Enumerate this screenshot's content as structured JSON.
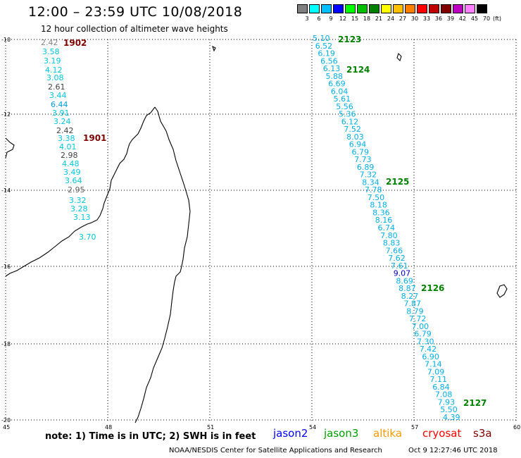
{
  "header": {
    "title": "12:00 – 23:59 UTC 10/08/2018",
    "subtitle": "12 hour collection of altimeter wave heights"
  },
  "color_scale": {
    "labels": [
      "3",
      "6",
      "9",
      "12",
      "15",
      "18",
      "21",
      "24",
      "27",
      "30",
      "33",
      "36",
      "39",
      "42",
      "45",
      "70"
    ],
    "unit": "(ft)",
    "colors": [
      "#7f7f7f",
      "#00ffff",
      "#00bfff",
      "#0000ff",
      "#00ff00",
      "#00c000",
      "#008000",
      "#ffff00",
      "#ffc000",
      "#ff8000",
      "#ff0000",
      "#c00000",
      "#800000",
      "#c000c0",
      "#ff80ff",
      "#000000"
    ]
  },
  "axes": {
    "lat_labels": [
      "-10",
      "-12",
      "-14",
      "-16",
      "-18",
      "-20"
    ],
    "lon_labels": [
      "45",
      "48",
      "51",
      "54",
      "57",
      "60"
    ]
  },
  "tracks": {
    "west": {
      "values": [
        "2.42",
        "3.58",
        "3.19",
        "4.12",
        "3.08",
        "2.61",
        "3.44",
        "6.44",
        "3.91",
        "3.24",
        "2.42",
        "3.38",
        "4.01",
        "2.98",
        "4.48",
        "3.49",
        "3.64",
        "2.95",
        "3.32",
        "3.28",
        "3.13",
        "3.70"
      ],
      "colors": [
        "#808080",
        "#00c8e0",
        "#00c8e0",
        "#00c8e0",
        "#00c8e0",
        "#404040",
        "#00c8e0",
        "#00a0e0",
        "#00c8e0",
        "#00c8e0",
        "#404040",
        "#00c8e0",
        "#00c8e0",
        "#404040",
        "#00c8e0",
        "#00c8e0",
        "#00c8e0",
        "#606060",
        "#00c8e0",
        "#00c8e0",
        "#00c8e0",
        "#00c8e0"
      ],
      "time_labels": [
        "1902",
        "1901"
      ]
    },
    "east": {
      "values": [
        "5.10",
        "6.52",
        "6.19",
        "6.56",
        "6.13",
        "5.88",
        "6.69",
        "6.04",
        "5.61",
        "5.56",
        "5.36",
        "6.12",
        "7.52",
        "8.03",
        "6.94",
        "6.79",
        "7.73",
        "6.89",
        "7.32",
        "8.34",
        "7.78",
        "7.50",
        "8.18",
        "8.36",
        "8.16",
        "6.74",
        "7.80",
        "8.83",
        "7.66",
        "7.62",
        "7.61",
        "9.07",
        "8.69",
        "8.87",
        "8.27",
        "7.87",
        "8.79",
        "7.72",
        "7.00",
        "6.79",
        "7.30",
        "7.42",
        "6.90",
        "7.14",
        "7.09",
        "7.11",
        "6.84",
        "7.08",
        "7.93",
        "5.50",
        "4.39"
      ],
      "colors": [
        "#00b0e8",
        "#00b0e8",
        "#00b0e8",
        "#00b0e8",
        "#00b0e8",
        "#00b0e8",
        "#00b0e8",
        "#00b0e8",
        "#00b0e8",
        "#00b0e8",
        "#00b0e8",
        "#00b0e8",
        "#00b0e8",
        "#00b0e8",
        "#00b0e8",
        "#00b0e8",
        "#00b0e8",
        "#00b0e8",
        "#00b0e8",
        "#00b0e8",
        "#00b0e8",
        "#00b0e8",
        "#00b0e8",
        "#00b0e8",
        "#00b0e8",
        "#00b0e8",
        "#00b0e8",
        "#00b0e8",
        "#00b0e8",
        "#00b0e8",
        "#00b0e8",
        "#0000cc",
        "#00b0e8",
        "#00b0e8",
        "#00b0e8",
        "#00b0e8",
        "#00b0e8",
        "#00b0e8",
        "#00b0e8",
        "#00b0e8",
        "#00b0e8",
        "#00b0e8",
        "#00b0e8",
        "#00b0e8",
        "#00b0e8",
        "#00b0e8",
        "#00b0e8",
        "#00b0e8",
        "#00b0e8",
        "#00b0e8",
        "#00b0e8"
      ],
      "time_labels": [
        "2123",
        "2124",
        "2125",
        "2126",
        "2127"
      ]
    }
  },
  "colors": {
    "west_time": "#800000",
    "east_time": "#008000",
    "grid": "#000000"
  },
  "footer": {
    "note": "note: 1) Time is in UTC; 2) SWH is in feet",
    "satellites": [
      {
        "name": "jason2",
        "color": "#0000ff"
      },
      {
        "name": "jason3",
        "color": "#00a000"
      },
      {
        "name": "altika",
        "color": "#ff9900"
      },
      {
        "name": "cryosat",
        "color": "#ff0000"
      },
      {
        "name": "s3a",
        "color": "#800000"
      }
    ],
    "credit": "NOAA/NESDIS Center for Satellite Applications and Research",
    "generated": "Oct  9 12:27:46 UTC 2018"
  }
}
